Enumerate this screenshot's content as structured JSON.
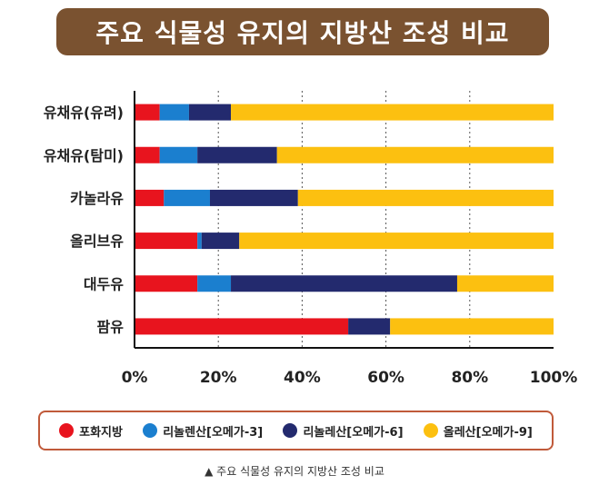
{
  "chart_data": {
    "type": "bar",
    "orientation": "horizontal-stacked-percent",
    "title": "주요 식물성 유지의 지방산 조성 비교",
    "categories": [
      "유채유(유려)",
      "유채유(탐미)",
      "카놀라유",
      "올리브유",
      "대두유",
      "팜유"
    ],
    "series": [
      {
        "name": "포화지방",
        "color": "#e8141e",
        "values": [
          6,
          6,
          7,
          15,
          15,
          51
        ]
      },
      {
        "name": "리놀렌산[오메가-3]",
        "color": "#1b7fcf",
        "values": [
          7,
          9,
          11,
          1,
          8,
          0
        ]
      },
      {
        "name": "리놀레산[오메가-6]",
        "color": "#232a6e",
        "values": [
          10,
          19,
          21,
          9,
          54,
          10
        ]
      },
      {
        "name": "올레산[오메가-9]",
        "color": "#fcc010",
        "values": [
          77,
          66,
          61,
          75,
          23,
          39
        ]
      }
    ],
    "xticks": [
      "0%",
      "20%",
      "40%",
      "60%",
      "80%",
      "100%"
    ],
    "xlim": [
      0,
      100
    ],
    "grid": true,
    "legend_position": "bottom"
  },
  "caption": "▲ 주요 식물성 유지의 지방산 조성 비교"
}
